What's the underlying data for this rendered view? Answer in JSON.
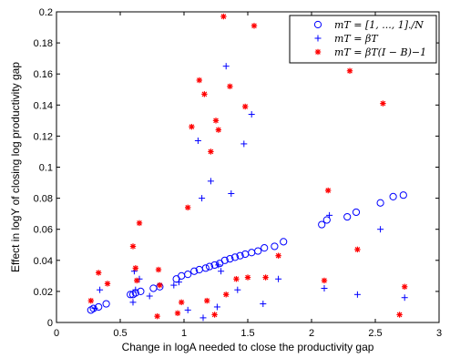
{
  "chart_data": {
    "type": "scatter",
    "title": "",
    "xlabel": "Change in logA needed to close the productivity gap",
    "ylabel": "Effect in logY of closing log productivity gap",
    "xlim": [
      0,
      3
    ],
    "ylim": [
      0,
      0.2
    ],
    "x_ticks": [
      "0",
      "0.5",
      "1",
      "1.5",
      "2",
      "2.5",
      "3"
    ],
    "y_ticks": [
      "0",
      "0.02",
      "0.04",
      "0.06",
      "0.08",
      "0.1",
      "0.12",
      "0.14",
      "0.16",
      "0.18",
      "0.2"
    ],
    "grid": false,
    "legend_position": "top-right",
    "series": [
      {
        "name": "m^T = [1, ..., 1]./N",
        "legend_label": "mT = [1, ..., 1]./N",
        "marker": "circle",
        "color": "#0000ff",
        "points": [
          [
            0.27,
            0.008
          ],
          [
            0.29,
            0.009
          ],
          [
            0.33,
            0.01
          ],
          [
            0.39,
            0.012
          ],
          [
            0.58,
            0.018
          ],
          [
            0.6,
            0.018
          ],
          [
            0.62,
            0.019
          ],
          [
            0.66,
            0.02
          ],
          [
            0.76,
            0.022
          ],
          [
            0.81,
            0.023
          ],
          [
            0.94,
            0.028
          ],
          [
            0.98,
            0.03
          ],
          [
            1.03,
            0.031
          ],
          [
            1.08,
            0.033
          ],
          [
            1.12,
            0.034
          ],
          [
            1.17,
            0.035
          ],
          [
            1.2,
            0.036
          ],
          [
            1.24,
            0.037
          ],
          [
            1.28,
            0.038
          ],
          [
            1.32,
            0.04
          ],
          [
            1.36,
            0.041
          ],
          [
            1.4,
            0.042
          ],
          [
            1.44,
            0.043
          ],
          [
            1.48,
            0.044
          ],
          [
            1.53,
            0.045
          ],
          [
            1.58,
            0.046
          ],
          [
            1.63,
            0.048
          ],
          [
            1.71,
            0.049
          ],
          [
            1.78,
            0.052
          ],
          [
            2.08,
            0.063
          ],
          [
            2.12,
            0.066
          ],
          [
            2.28,
            0.068
          ],
          [
            2.35,
            0.071
          ],
          [
            2.54,
            0.077
          ],
          [
            2.64,
            0.081
          ],
          [
            2.72,
            0.082
          ]
        ]
      },
      {
        "name": "m^T = β^T",
        "legend_label": "mT = βT",
        "marker": "plus",
        "color": "#0000ff",
        "points": [
          [
            0.3,
            0.009
          ],
          [
            0.34,
            0.021
          ],
          [
            0.6,
            0.013
          ],
          [
            0.61,
            0.033
          ],
          [
            0.62,
            0.021
          ],
          [
            0.65,
            0.028
          ],
          [
            0.73,
            0.017
          ],
          [
            0.92,
            0.024
          ],
          [
            0.96,
            0.026
          ],
          [
            1.03,
            0.008
          ],
          [
            1.11,
            0.117
          ],
          [
            1.14,
            0.08
          ],
          [
            1.15,
            0.003
          ],
          [
            1.21,
            0.091
          ],
          [
            1.26,
            0.01
          ],
          [
            1.27,
            0.037
          ],
          [
            1.29,
            0.033
          ],
          [
            1.33,
            0.165
          ],
          [
            1.37,
            0.083
          ],
          [
            1.42,
            0.021
          ],
          [
            1.47,
            0.115
          ],
          [
            1.53,
            0.134
          ],
          [
            1.62,
            0.012
          ],
          [
            1.74,
            0.028
          ],
          [
            2.1,
            0.022
          ],
          [
            2.14,
            0.069
          ],
          [
            2.36,
            0.018
          ],
          [
            2.54,
            0.06
          ],
          [
            2.73,
            0.016
          ]
        ]
      },
      {
        "name": "m^T = β^T(I − B)^−1",
        "legend_label": "mT = βT(I − B)−1",
        "marker": "star",
        "color": "#ff0000",
        "points": [
          [
            0.27,
            0.014
          ],
          [
            0.33,
            0.032
          ],
          [
            0.4,
            0.025
          ],
          [
            0.6,
            0.049
          ],
          [
            0.62,
            0.035
          ],
          [
            0.63,
            0.027
          ],
          [
            0.65,
            0.064
          ],
          [
            0.79,
            0.004
          ],
          [
            0.8,
            0.034
          ],
          [
            0.81,
            0.024
          ],
          [
            0.95,
            0.006
          ],
          [
            0.98,
            0.013
          ],
          [
            1.03,
            0.074
          ],
          [
            1.06,
            0.126
          ],
          [
            1.12,
            0.156
          ],
          [
            1.16,
            0.147
          ],
          [
            1.18,
            0.014
          ],
          [
            1.21,
            0.11
          ],
          [
            1.24,
            0.005
          ],
          [
            1.25,
            0.13
          ],
          [
            1.27,
            0.124
          ],
          [
            1.31,
            0.197
          ],
          [
            1.33,
            0.018
          ],
          [
            1.36,
            0.152
          ],
          [
            1.41,
            0.028
          ],
          [
            1.48,
            0.139
          ],
          [
            1.5,
            0.029
          ],
          [
            1.55,
            0.191
          ],
          [
            1.64,
            0.029
          ],
          [
            1.74,
            0.043
          ],
          [
            2.1,
            0.027
          ],
          [
            2.13,
            0.085
          ],
          [
            2.3,
            0.162
          ],
          [
            2.36,
            0.047
          ],
          [
            2.56,
            0.141
          ],
          [
            2.69,
            0.005
          ],
          [
            2.73,
            0.023
          ]
        ]
      }
    ]
  }
}
